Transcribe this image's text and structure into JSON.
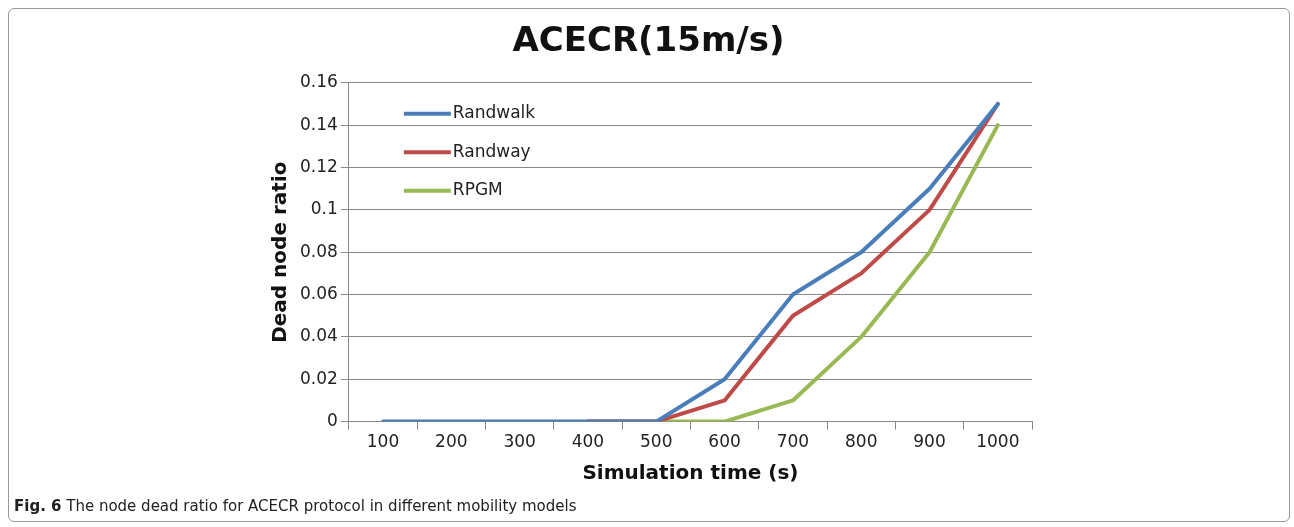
{
  "chart_data": {
    "type": "line",
    "title": "ACECR(15m/s)",
    "xlabel": "Simulation time (s)",
    "ylabel": "Dead node ratio",
    "categories": [
      "100",
      "200",
      "300",
      "400",
      "500",
      "600",
      "700",
      "800",
      "900",
      "1000"
    ],
    "series": [
      {
        "name": "Randwalk",
        "color": "#4a7ebb",
        "values": [
          0,
          0,
          0,
          0,
          0,
          0.02,
          0.06,
          0.08,
          0.11,
          0.15
        ]
      },
      {
        "name": "Randway",
        "color": "#be4b48",
        "values": [
          null,
          null,
          null,
          0,
          0,
          0.01,
          0.05,
          0.07,
          0.1,
          0.15
        ]
      },
      {
        "name": "RPGM",
        "color": "#98b954",
        "values": [
          null,
          null,
          null,
          0,
          0,
          0,
          0.01,
          0.04,
          0.08,
          0.14
        ]
      }
    ],
    "ylim": [
      0,
      0.16
    ],
    "yticks": [
      0,
      0.02,
      0.04,
      0.06,
      0.08,
      0.1,
      0.12,
      0.14,
      0.16
    ],
    "grid": "y",
    "legend": "top left",
    "marker": "none",
    "line_style": "solid",
    "annotations": [
      "Fig. 6 The node dead ratio for ACECR protocol in different mobility models"
    ]
  }
}
